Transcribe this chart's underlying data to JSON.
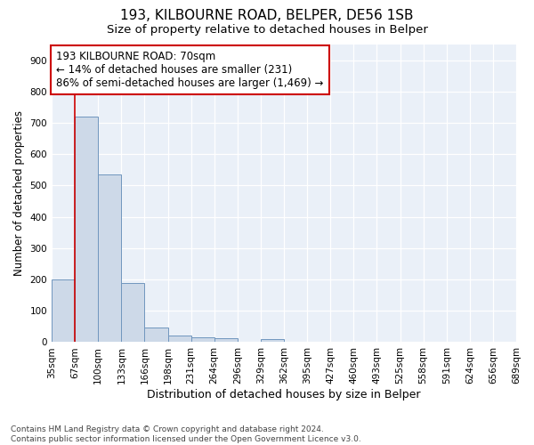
{
  "title": "193, KILBOURNE ROAD, BELPER, DE56 1SB",
  "subtitle": "Size of property relative to detached houses in Belper",
  "xlabel": "Distribution of detached houses by size in Belper",
  "ylabel": "Number of detached properties",
  "bins": [
    "35sqm",
    "67sqm",
    "100sqm",
    "133sqm",
    "166sqm",
    "198sqm",
    "231sqm",
    "264sqm",
    "296sqm",
    "329sqm",
    "362sqm",
    "395sqm",
    "427sqm",
    "460sqm",
    "493sqm",
    "525sqm",
    "558sqm",
    "591sqm",
    "624sqm",
    "656sqm",
    "689sqm"
  ],
  "values": [
    200,
    720,
    535,
    190,
    47,
    20,
    15,
    12,
    0,
    10,
    0,
    0,
    0,
    0,
    0,
    0,
    0,
    0,
    0,
    0
  ],
  "bar_color": "#cdd9e8",
  "bar_edge_color": "#7096be",
  "vline_x_index": 1,
  "vline_color": "#cc0000",
  "ylim": [
    0,
    950
  ],
  "yticks": [
    0,
    100,
    200,
    300,
    400,
    500,
    600,
    700,
    800,
    900
  ],
  "annotation_text": "193 KILBOURNE ROAD: 70sqm\n← 14% of detached houses are smaller (231)\n86% of semi-detached houses are larger (1,469) →",
  "bg_color": "#eaf0f8",
  "footer": "Contains HM Land Registry data © Crown copyright and database right 2024.\nContains public sector information licensed under the Open Government Licence v3.0.",
  "title_fontsize": 11,
  "subtitle_fontsize": 9.5,
  "xlabel_fontsize": 9,
  "ylabel_fontsize": 8.5,
  "tick_fontsize": 7.5,
  "annotation_fontsize": 8.5,
  "footer_fontsize": 6.5
}
